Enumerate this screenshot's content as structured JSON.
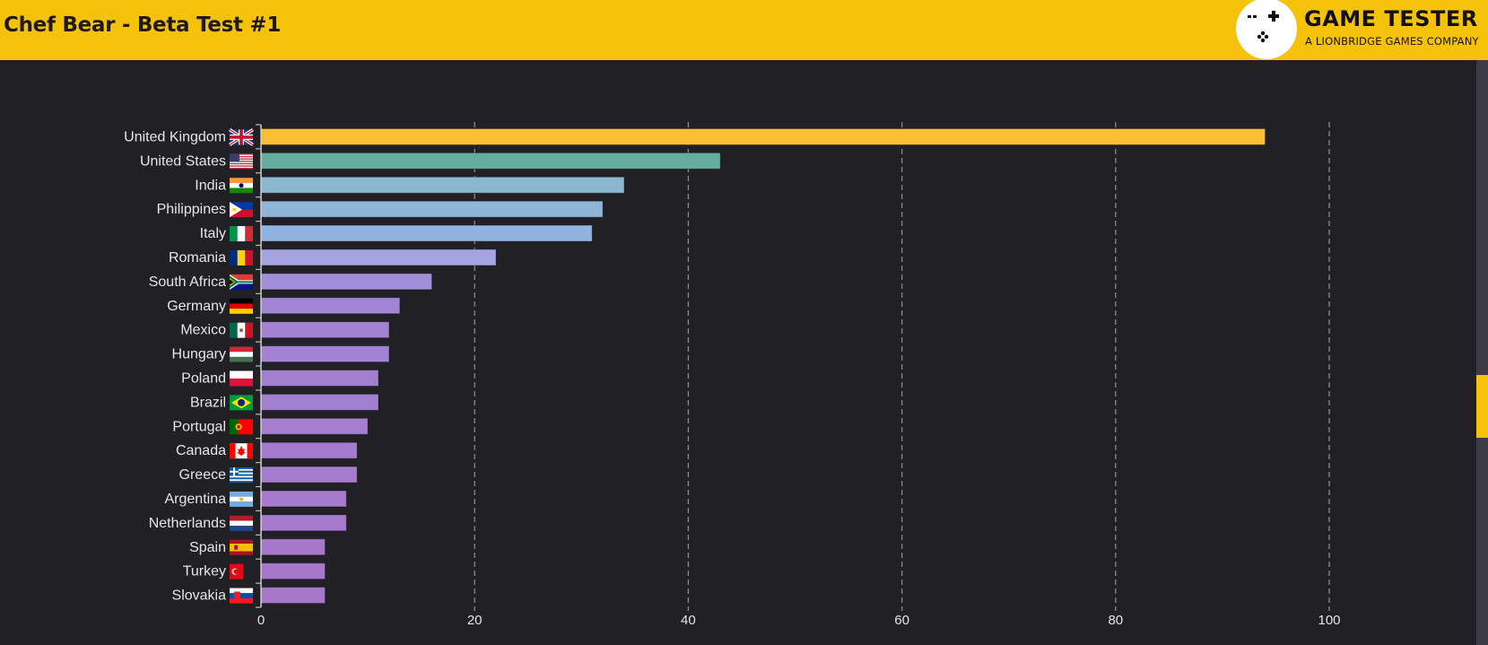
{
  "header": {
    "title": "Chef Bear - Beta Test #1",
    "logo_title": "GAME TESTER",
    "logo_subtitle": "A LIONBRIDGE GAMES COMPANY",
    "background_color": "#f5c20a"
  },
  "chart_data": {
    "type": "bar",
    "orientation": "horizontal",
    "title": "",
    "xlabel": "",
    "ylabel": "",
    "xlim": [
      0,
      100
    ],
    "x_ticks": [
      0,
      20,
      40,
      60,
      80,
      100
    ],
    "grid": "vertical dashed",
    "legend": "none",
    "categories": [
      "United Kingdom",
      "United States",
      "India",
      "Philippines",
      "Italy",
      "Romania",
      "South Africa",
      "Germany",
      "Mexico",
      "Hungary",
      "Poland",
      "Brazil",
      "Portugal",
      "Canada",
      "Greece",
      "Argentina",
      "Netherlands",
      "Spain",
      "Turkey",
      "Slovakia"
    ],
    "flags": [
      "uk-flag",
      "us-flag",
      "india-flag",
      "philippines-flag",
      "italy-flag",
      "romania-flag",
      "south-africa-flag",
      "germany-flag",
      "mexico-flag",
      "hungary-flag",
      "poland-flag",
      "brazil-flag",
      "portugal-flag",
      "canada-flag",
      "greece-flag",
      "argentina-flag",
      "netherlands-flag",
      "spain-flag",
      "turkey-flag",
      "slovakia-flag"
    ],
    "values": [
      94,
      43,
      34,
      32,
      31,
      22,
      16,
      13,
      12,
      12,
      11,
      11,
      10,
      9,
      9,
      8,
      8,
      6,
      6,
      6
    ],
    "colors": [
      "#fbbf33",
      "#67ad9f",
      "#8bb8cf",
      "#8fb6d9",
      "#92b3df",
      "#a3a4e0",
      "#a08fd8",
      "#a085d4",
      "#a282d2",
      "#a282d2",
      "#a37fd0",
      "#a37fd0",
      "#a57ecf",
      "#a57ccd",
      "#a57ccd",
      "#a67acc",
      "#a67acc",
      "#a778ca",
      "#a778ca",
      "#a778ca"
    ]
  }
}
